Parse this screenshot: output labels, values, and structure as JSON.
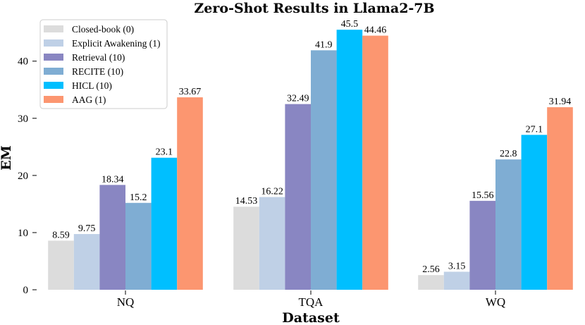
{
  "chart_data": {
    "type": "bar",
    "title": "Zero-Shot Results in Llama2-7B",
    "xlabel": "Dataset",
    "ylabel": "EM",
    "ylim": [
      0,
      47
    ],
    "yticks": [
      0,
      10,
      20,
      30,
      40
    ],
    "grid": false,
    "legend_position": "top-left",
    "categories": [
      "NQ",
      "TQA",
      "WQ"
    ],
    "series": [
      {
        "name": "Closed-book (0)",
        "color": "#dcdcdc",
        "values": [
          8.59,
          14.53,
          2.56
        ],
        "labels": [
          "8.59",
          "14.53",
          "2.56"
        ]
      },
      {
        "name": "Explicit Awakening (1)",
        "color": "#bfd0e6",
        "values": [
          9.75,
          16.22,
          3.15
        ],
        "labels": [
          "9.75",
          "16.22",
          "3.15"
        ]
      },
      {
        "name": "Retrieval (10)",
        "color": "#8986c2",
        "values": [
          18.34,
          32.49,
          15.56
        ],
        "labels": [
          "18.34",
          "32.49",
          "15.56"
        ]
      },
      {
        "name": "RECITE (10)",
        "color": "#7fadd3",
        "values": [
          15.2,
          41.9,
          22.8
        ],
        "labels": [
          "15.2",
          "41.9",
          "22.8"
        ]
      },
      {
        "name": "HICL (10)",
        "color": "#00bfff",
        "values": [
          23.1,
          45.5,
          27.1
        ],
        "labels": [
          "23.1",
          "45.5",
          "27.1"
        ]
      },
      {
        "name": "AAG (1)",
        "color": "#fc9670",
        "values": [
          33.67,
          44.46,
          31.94
        ],
        "labels": [
          "33.67",
          "44.46",
          "31.94"
        ]
      }
    ]
  }
}
